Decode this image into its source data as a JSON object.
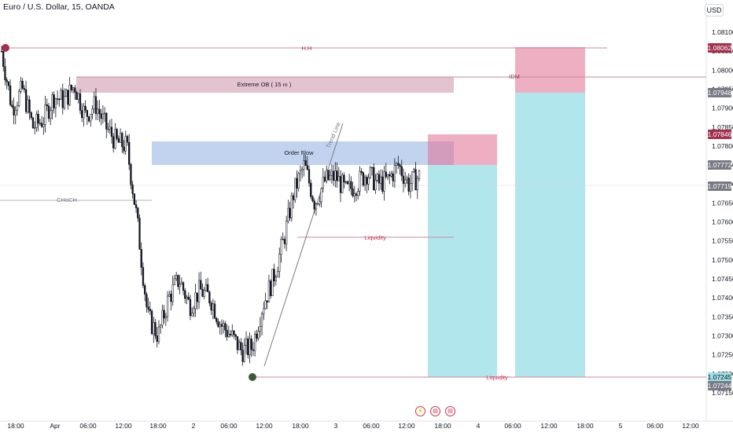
{
  "header": {
    "title": "Euro / U.S. Dollar, 15, OANDA",
    "currency": "USD"
  },
  "event_icons": [
    "lightning-icon",
    "us-flag-icon",
    "us-flag-icon"
  ],
  "chart_data": {
    "type": "candlestick",
    "symbol": "EURUSD",
    "timeframe": "15",
    "broker": "OANDA",
    "price_axis": {
      "ylim": [
        1.0715,
        1.0815
      ],
      "ticks": [
        "1.08100",
        "1.08050",
        "1.08000",
        "1.07950",
        "1.07900",
        "1.07850",
        "1.07800",
        "1.07750",
        "1.07700",
        "1.07650",
        "1.07600",
        "1.07550",
        "1.07500",
        "1.07450",
        "1.07400",
        "1.07350",
        "1.07300",
        "1.07250",
        "1.07200",
        "1.07150"
      ]
    },
    "time_axis": {
      "ticks": [
        "18:00",
        "Apr",
        "06:00",
        "12:00",
        "18:00",
        "2",
        "06:00",
        "12:00",
        "18:00",
        "3",
        "06:00",
        "12:00",
        "18:00",
        "4",
        "06:00",
        "12:00",
        "18:00",
        "5",
        "06:00",
        "12:00"
      ]
    },
    "price_labels": [
      {
        "value": "1.08062",
        "color": "#a3304d"
      },
      {
        "value": "1.07948",
        "color": "#787b86"
      },
      {
        "value": "1.07846",
        "color": "#a3304d"
      },
      {
        "value": "1.07772",
        "color": "#787b86"
      },
      {
        "value": "1.07719",
        "color": "#787b86"
      },
      {
        "value": "1.07245",
        "color": "#9fdee5"
      },
      {
        "value": "1.07244",
        "color": "#787b86"
      }
    ],
    "annotations": [
      {
        "text": "H.H",
        "kind": "level",
        "price": 1.08062
      },
      {
        "text": "Extreme OB ( 15 ııı )",
        "kind": "zone"
      },
      {
        "text": "Order Flow",
        "kind": "zone"
      },
      {
        "text": "CHoCH",
        "kind": "level"
      },
      {
        "text": "Trend Line",
        "kind": "trendline"
      },
      {
        "text": "Liquidity",
        "kind": "level"
      },
      {
        "text": "IDM",
        "kind": "level"
      },
      {
        "text": "Liquidity",
        "kind": "level",
        "price": 1.07245
      }
    ],
    "series": [
      {
        "price_points": [
          1.0805,
          1.079,
          1.0795,
          1.0785,
          1.0787,
          1.0793,
          1.0792,
          1.0796,
          1.0788,
          1.0791,
          1.0785,
          1.0781,
          1.078,
          1.076,
          1.0735,
          1.073,
          1.074,
          1.0745,
          1.0738,
          1.0742,
          1.074,
          1.0733,
          1.073,
          1.0726,
          1.0727,
          1.0738,
          1.0745,
          1.0755,
          1.0768,
          1.0775,
          1.0765,
          1.0771,
          1.0772,
          1.0768,
          1.077,
          1.0773,
          1.077,
          1.0771,
          1.0775,
          1.077,
          1.0772
        ],
        "note": "approximate close prices (bull/bear candles)"
      }
    ]
  }
}
